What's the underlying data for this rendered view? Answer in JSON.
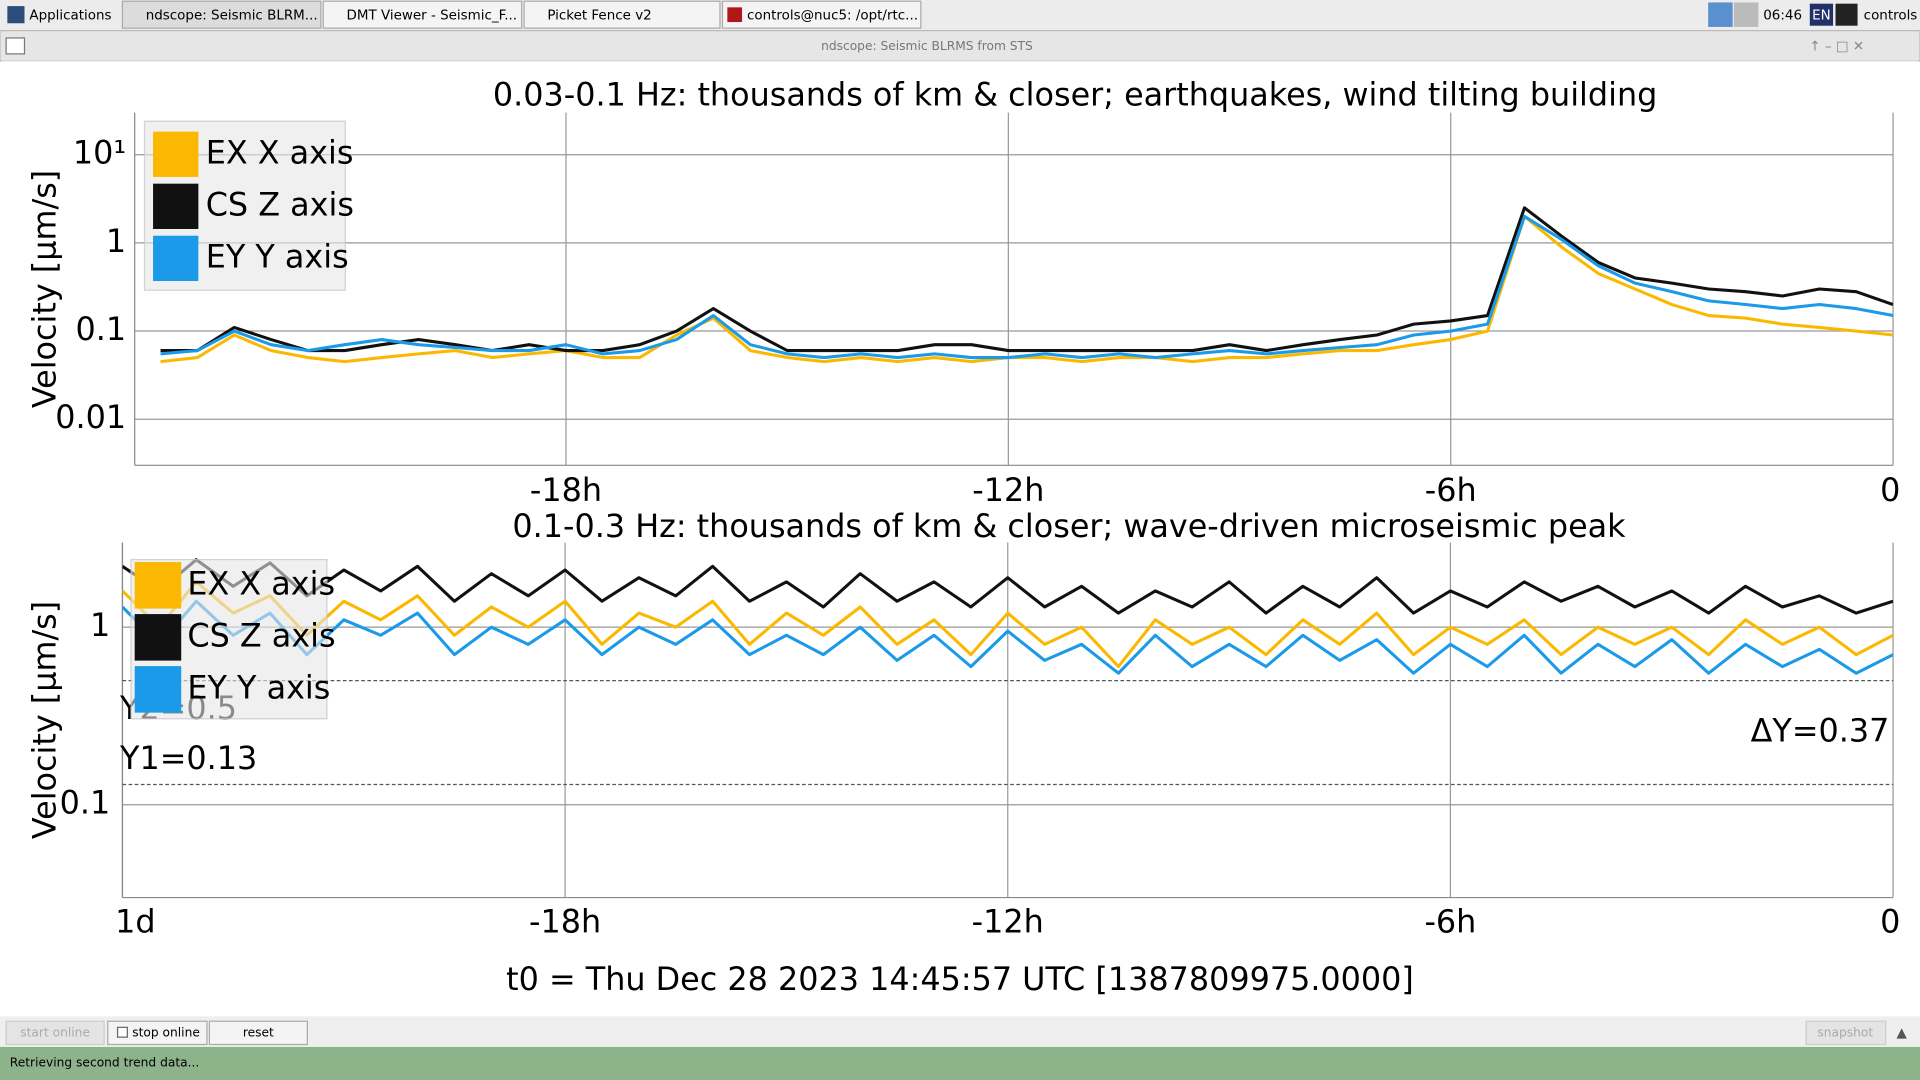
{
  "taskbar": {
    "items": [
      "Applications",
      "ndscope: Seismic BLRM...",
      "DMT Viewer - Seismic_F...",
      "Picket Fence v2",
      "controls@nuc5: /opt/rtc..."
    ],
    "clock": "06:46",
    "lang": "EN",
    "user": "controls"
  },
  "window_title": "ndscope: Seismic BLRMS from STS",
  "chart_data": [
    {
      "type": "line",
      "title": "0.03-0.1 Hz: thousands of km & closer; earthquakes, wind tilting building",
      "ylabel": "Velocity [µm/s]",
      "log_y": true,
      "grid": true,
      "legend": "upper-left",
      "xlim": [
        -23.85,
        0
      ],
      "xticks": [
        {
          "value": -18,
          "label": "-18h"
        },
        {
          "value": -12,
          "label": "-12h"
        },
        {
          "value": -6,
          "label": "-6h"
        },
        0
      ],
      "ylim": [
        0.003,
        30
      ],
      "yticks": [
        0.01,
        0.1,
        1,
        {
          "value": 10,
          "label": "10¹"
        }
      ],
      "x": [
        -23.5,
        -23,
        -22.5,
        -22,
        -21.5,
        -21,
        -20.5,
        -20,
        -19.5,
        -19,
        -18.5,
        -18,
        -17.5,
        -17,
        -16.5,
        -16,
        -15.5,
        -15,
        -14.5,
        -14,
        -13.5,
        -13,
        -12.5,
        -12,
        -11.5,
        -11,
        -10.5,
        -10,
        -9.5,
        -9,
        -8.5,
        -8,
        -7.5,
        -7,
        -6.5,
        -6,
        -5.5,
        -5,
        -4.5,
        -4,
        -3.5,
        -3,
        -2.5,
        -2,
        -1.5,
        -1,
        -0.5,
        0
      ],
      "series": [
        {
          "name": "EX X axis",
          "color": "#fbb800",
          "values": [
            0.045,
            0.05,
            0.09,
            0.06,
            0.05,
            0.045,
            0.05,
            0.055,
            0.06,
            0.05,
            0.055,
            0.06,
            0.05,
            0.05,
            0.09,
            0.14,
            0.06,
            0.05,
            0.045,
            0.05,
            0.045,
            0.05,
            0.045,
            0.05,
            0.05,
            0.045,
            0.05,
            0.05,
            0.045,
            0.05,
            0.05,
            0.055,
            0.06,
            0.06,
            0.07,
            0.08,
            0.1,
            2.0,
            0.9,
            0.45,
            0.3,
            0.2,
            0.15,
            0.14,
            0.12,
            0.11,
            0.1,
            0.09
          ]
        },
        {
          "name": "CS Z axis",
          "color": "#111111",
          "values": [
            0.06,
            0.06,
            0.11,
            0.08,
            0.06,
            0.06,
            0.07,
            0.08,
            0.07,
            0.06,
            0.07,
            0.06,
            0.06,
            0.07,
            0.1,
            0.18,
            0.1,
            0.06,
            0.06,
            0.06,
            0.06,
            0.07,
            0.07,
            0.06,
            0.06,
            0.06,
            0.06,
            0.06,
            0.06,
            0.07,
            0.06,
            0.07,
            0.08,
            0.09,
            0.12,
            0.13,
            0.15,
            2.5,
            1.2,
            0.6,
            0.4,
            0.35,
            0.3,
            0.28,
            0.25,
            0.3,
            0.28,
            0.2
          ]
        },
        {
          "name": "EY Y axis",
          "color": "#1a9ae8",
          "values": [
            0.055,
            0.06,
            0.1,
            0.07,
            0.06,
            0.07,
            0.08,
            0.07,
            0.065,
            0.06,
            0.06,
            0.07,
            0.055,
            0.06,
            0.08,
            0.15,
            0.07,
            0.055,
            0.05,
            0.055,
            0.05,
            0.055,
            0.05,
            0.05,
            0.055,
            0.05,
            0.055,
            0.05,
            0.055,
            0.06,
            0.055,
            0.06,
            0.065,
            0.07,
            0.09,
            0.1,
            0.12,
            2.0,
            1.1,
            0.55,
            0.35,
            0.28,
            0.22,
            0.2,
            0.18,
            0.2,
            0.18,
            0.15
          ]
        }
      ]
    },
    {
      "type": "line",
      "title": "0.1-0.3 Hz: thousands of km & closer; wave-driven microseismic peak",
      "ylabel": "Velocity [µm/s]",
      "log_y": true,
      "grid": true,
      "legend": "upper-left",
      "xlim": [
        -24,
        0
      ],
      "xticks": [
        {
          "value": -24,
          "label": "1d"
        },
        {
          "value": -18,
          "label": "-18h"
        },
        {
          "value": -12,
          "label": "-12h"
        },
        {
          "value": -6,
          "label": "-6h"
        },
        0
      ],
      "ylim": [
        0.03,
        3
      ],
      "yticks": [
        0.1,
        1
      ],
      "x": [
        -24,
        -23.5,
        -23,
        -22.5,
        -22,
        -21.5,
        -21,
        -20.5,
        -20,
        -19.5,
        -19,
        -18.5,
        -18,
        -17.5,
        -17,
        -16.5,
        -16,
        -15.5,
        -15,
        -14.5,
        -14,
        -13.5,
        -13,
        -12.5,
        -12,
        -11.5,
        -11,
        -10.5,
        -10,
        -9.5,
        -9,
        -8.5,
        -8,
        -7.5,
        -7,
        -6.5,
        -6,
        -5.5,
        -5,
        -4.5,
        -4,
        -3.5,
        -3,
        -2.5,
        -2,
        -1.5,
        -1,
        -0.5,
        0
      ],
      "series": [
        {
          "name": "EX X axis",
          "color": "#fbb800",
          "values": [
            1.6,
            1.0,
            1.8,
            1.2,
            1.5,
            0.9,
            1.4,
            1.1,
            1.5,
            0.9,
            1.3,
            1.0,
            1.4,
            0.8,
            1.2,
            1.0,
            1.4,
            0.8,
            1.2,
            0.9,
            1.3,
            0.8,
            1.1,
            0.7,
            1.2,
            0.8,
            1.0,
            0.6,
            1.1,
            0.8,
            1.0,
            0.7,
            1.1,
            0.8,
            1.2,
            0.7,
            1.0,
            0.8,
            1.1,
            0.7,
            1.0,
            0.8,
            1.0,
            0.7,
            1.1,
            0.8,
            1.0,
            0.7,
            0.9
          ]
        },
        {
          "name": "CS Z axis",
          "color": "#111111",
          "values": [
            2.2,
            1.6,
            2.4,
            1.7,
            2.3,
            1.5,
            2.1,
            1.6,
            2.2,
            1.4,
            2.0,
            1.5,
            2.1,
            1.4,
            1.9,
            1.5,
            2.2,
            1.4,
            1.8,
            1.3,
            2.0,
            1.4,
            1.8,
            1.3,
            1.9,
            1.3,
            1.7,
            1.2,
            1.6,
            1.3,
            1.8,
            1.2,
            1.7,
            1.3,
            1.9,
            1.2,
            1.6,
            1.3,
            1.8,
            1.4,
            1.7,
            1.3,
            1.6,
            1.2,
            1.7,
            1.3,
            1.5,
            1.2,
            1.4
          ]
        },
        {
          "name": "EY Y axis",
          "color": "#1a9ae8",
          "values": [
            1.3,
            0.8,
            1.4,
            0.9,
            1.2,
            0.7,
            1.1,
            0.9,
            1.2,
            0.7,
            1.0,
            0.8,
            1.1,
            0.7,
            1.0,
            0.8,
            1.1,
            0.7,
            0.9,
            0.7,
            1.0,
            0.65,
            0.9,
            0.6,
            0.95,
            0.65,
            0.8,
            0.55,
            0.9,
            0.6,
            0.8,
            0.6,
            0.9,
            0.65,
            0.85,
            0.55,
            0.8,
            0.6,
            0.9,
            0.55,
            0.8,
            0.6,
            0.85,
            0.55,
            0.8,
            0.6,
            0.75,
            0.55,
            0.7
          ]
        }
      ],
      "cursors": [
        {
          "value": 0.13,
          "label": "Y1=0.13"
        },
        {
          "value": 0.5,
          "label": "Y2=0.5"
        }
      ],
      "delta_label": "ΔY=0.37"
    }
  ],
  "t0_label": "t0 = Thu Dec 28 2023 14:45:57 UTC [1387809975.0000]",
  "buttons": [
    "start online",
    "stop online",
    "reset",
    "snapshot"
  ],
  "status": "Retrieving second trend data..."
}
